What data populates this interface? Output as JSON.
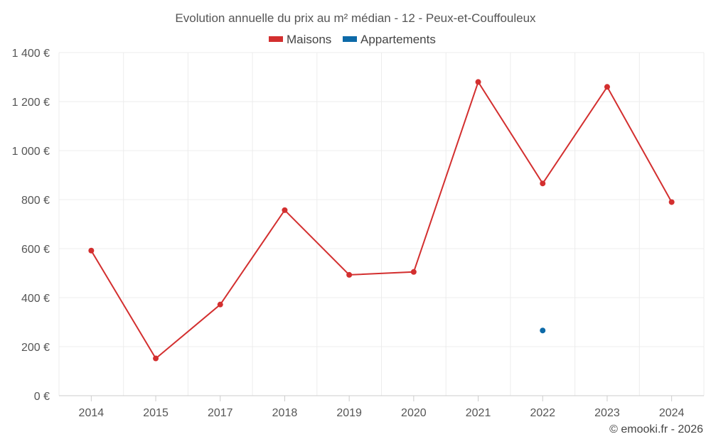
{
  "chart_data": {
    "type": "line",
    "title": "Evolution annuelle du prix au m² médian - 12 - Peux-et-Couffouleux",
    "categories": [
      "2014",
      "2015",
      "2017",
      "2018",
      "2019",
      "2020",
      "2021",
      "2022",
      "2023",
      "2024"
    ],
    "series": [
      {
        "name": "Maisons",
        "color": "#d32f2f",
        "values": [
          592,
          152,
          372,
          757,
          493,
          505,
          1280,
          866,
          1260,
          790
        ]
      },
      {
        "name": "Appartements",
        "color": "#0d6aa8",
        "values": [
          null,
          null,
          null,
          null,
          null,
          null,
          null,
          266,
          null,
          null
        ]
      }
    ],
    "yticks": [
      0,
      200,
      400,
      600,
      800,
      1000,
      1200,
      1400
    ],
    "ytick_labels": [
      "0 €",
      "200 €",
      "400 €",
      "600 €",
      "800 €",
      "1 000 €",
      "1 200 €",
      "1 400 €"
    ],
    "ylim": [
      0,
      1400
    ],
    "xlabel": "",
    "ylabel": "",
    "legend_position": "top-center",
    "grid": true
  },
  "credit": "© emooki.fr - 2026"
}
